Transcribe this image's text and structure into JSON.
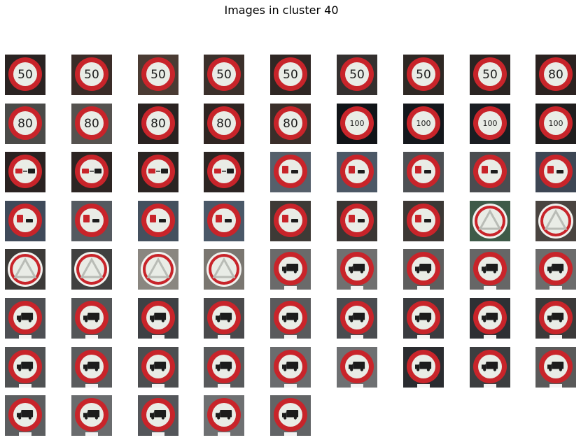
{
  "figure": {
    "title": "Images in cluster 40"
  },
  "colors": {
    "sign_red": "#c8242a",
    "sign_face": "#e9ece6",
    "glyph": "#1c1c1c"
  },
  "images": [
    {
      "content": "speed-limit",
      "label": "50",
      "bg": "#2a2322"
    },
    {
      "content": "speed-limit",
      "label": "50",
      "bg": "#3a2c28"
    },
    {
      "content": "speed-limit",
      "label": "50",
      "bg": "#4a3b33"
    },
    {
      "content": "speed-limit",
      "label": "50",
      "bg": "#3b302b"
    },
    {
      "content": "speed-limit",
      "label": "50",
      "bg": "#2f2724"
    },
    {
      "content": "speed-limit",
      "label": "50",
      "bg": "#34302f"
    },
    {
      "content": "speed-limit",
      "label": "50",
      "bg": "#2e2824"
    },
    {
      "content": "speed-limit",
      "label": "50",
      "bg": "#2a2422"
    },
    {
      "content": "speed-limit",
      "label": "80",
      "bg": "#2b2220"
    },
    {
      "content": "speed-limit",
      "label": "80",
      "bg": "#4a4a48"
    },
    {
      "content": "speed-limit",
      "label": "80",
      "bg": "#55524f"
    },
    {
      "content": "speed-limit",
      "label": "80",
      "bg": "#2a2221"
    },
    {
      "content": "speed-limit",
      "label": "80",
      "bg": "#2f2522"
    },
    {
      "content": "speed-limit",
      "label": "80",
      "bg": "#3a2e2a"
    },
    {
      "content": "speed-limit",
      "label": "100",
      "bg": "#111418"
    },
    {
      "content": "speed-limit",
      "label": "100",
      "bg": "#14171c"
    },
    {
      "content": "speed-limit",
      "label": "100",
      "bg": "#1a1d22"
    },
    {
      "content": "speed-limit",
      "label": "100",
      "bg": "#201e1e"
    },
    {
      "content": "no-overtaking",
      "bg": "#2a2221"
    },
    {
      "content": "no-overtaking",
      "bg": "#2d2523"
    },
    {
      "content": "no-overtaking",
      "bg": "#2b2422"
    },
    {
      "content": "no-overtaking",
      "bg": "#2c2523"
    },
    {
      "content": "truck-overtaking",
      "bg": "#56606b"
    },
    {
      "content": "truck-overtaking",
      "bg": "#4c5866"
    },
    {
      "content": "truck-overtaking",
      "bg": "#4d5054"
    },
    {
      "content": "truck-overtaking",
      "bg": "#4a4c50"
    },
    {
      "content": "truck-overtaking",
      "bg": "#3d4654"
    },
    {
      "content": "truck-overtaking",
      "bg": "#3f4a5a"
    },
    {
      "content": "truck-overtaking",
      "bg": "#555a60"
    },
    {
      "content": "truck-overtaking",
      "bg": "#44505e"
    },
    {
      "content": "truck-overtaking",
      "bg": "#4a5868"
    },
    {
      "content": "truck-overtaking",
      "bg": "#3e3a36"
    },
    {
      "content": "truck-overtaking",
      "bg": "#3a3634"
    },
    {
      "content": "truck-overtaking",
      "bg": "#3c3835"
    },
    {
      "content": "triangle",
      "bg": "#3e5a48"
    },
    {
      "content": "triangle",
      "bg": "#4a4440"
    },
    {
      "content": "triangle",
      "bg": "#3c3a38"
    },
    {
      "content": "triangle",
      "bg": "#404040"
    },
    {
      "content": "triangle",
      "bg": "#8a8680"
    },
    {
      "content": "triangle",
      "bg": "#7a7670"
    },
    {
      "content": "no-trucks",
      "bg": "#6a6a6a"
    },
    {
      "content": "no-trucks",
      "bg": "#707070"
    },
    {
      "content": "no-trucks",
      "bg": "#5e5e5e"
    },
    {
      "content": "no-trucks",
      "bg": "#666666"
    },
    {
      "content": "no-trucks",
      "bg": "#6c6c6c"
    },
    {
      "content": "no-trucks",
      "bg": "#4e5054"
    },
    {
      "content": "no-trucks",
      "bg": "#545658"
    },
    {
      "content": "no-trucks",
      "bg": "#3e4044"
    },
    {
      "content": "no-trucks",
      "bg": "#4a4a4c"
    },
    {
      "content": "no-trucks",
      "bg": "#5a5a5c"
    },
    {
      "content": "no-trucks",
      "bg": "#4a4c50"
    },
    {
      "content": "no-trucks",
      "bg": "#3a3c40"
    },
    {
      "content": "no-trucks",
      "bg": "#2e3034"
    },
    {
      "content": "no-trucks",
      "bg": "#3c3a3a"
    },
    {
      "content": "no-trucks",
      "bg": "#505254"
    },
    {
      "content": "no-trucks",
      "bg": "#5a5c5e"
    },
    {
      "content": "no-trucks",
      "bg": "#4c4e50"
    },
    {
      "content": "no-trucks",
      "bg": "#585a5c"
    },
    {
      "content": "no-trucks",
      "bg": "#6a6c6e"
    },
    {
      "content": "no-trucks",
      "bg": "#6e7072"
    },
    {
      "content": "no-trucks",
      "bg": "#2a2c30"
    },
    {
      "content": "no-trucks",
      "bg": "#3c3e40"
    },
    {
      "content": "no-trucks",
      "bg": "#5a5a5a"
    },
    {
      "content": "no-trucks",
      "bg": "#5c5e60"
    },
    {
      "content": "no-trucks",
      "bg": "#6a6c6e"
    },
    {
      "content": "no-trucks",
      "bg": "#54565a"
    },
    {
      "content": "no-trucks",
      "bg": "#6e7072"
    },
    {
      "content": "no-trucks",
      "bg": "#626466"
    }
  ]
}
